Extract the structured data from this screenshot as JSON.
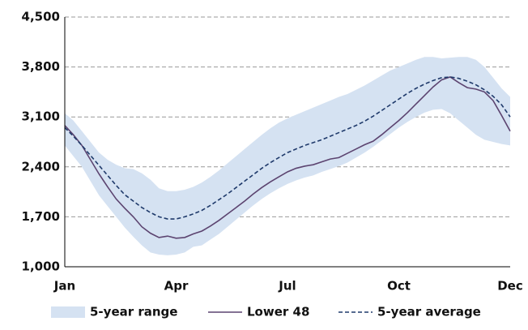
{
  "chart_data": {
    "type": "line",
    "categories": [
      "Jan",
      null,
      null,
      null,
      null,
      null,
      null,
      null,
      null,
      null,
      null,
      null,
      null,
      "Apr",
      null,
      null,
      null,
      null,
      null,
      null,
      null,
      null,
      null,
      null,
      null,
      null,
      "Jul",
      null,
      null,
      null,
      null,
      null,
      null,
      null,
      null,
      null,
      null,
      null,
      null,
      "Oct",
      null,
      null,
      null,
      null,
      null,
      null,
      null,
      null,
      null,
      null,
      null,
      null,
      "Dec"
    ],
    "ylim": [
      1000,
      4500
    ],
    "yticks": [
      {
        "value": 1000,
        "label": "1,000"
      },
      {
        "value": 1700,
        "label": "1,700"
      },
      {
        "value": 2400,
        "label": "2,400"
      },
      {
        "value": 3100,
        "label": "3,100"
      },
      {
        "value": 3800,
        "label": "3,800"
      },
      {
        "value": 4500,
        "label": "4,500"
      }
    ],
    "grid": true,
    "legend": "bottom",
    "series": [
      {
        "name": "5-year range",
        "kind": "range",
        "color": "#d5e2f2",
        "high": [
          3150,
          3050,
          2900,
          2750,
          2600,
          2500,
          2430,
          2380,
          2370,
          2310,
          2220,
          2100,
          2060,
          2060,
          2080,
          2120,
          2180,
          2260,
          2350,
          2450,
          2550,
          2650,
          2750,
          2850,
          2940,
          3020,
          3080,
          3130,
          3180,
          3230,
          3280,
          3330,
          3380,
          3420,
          3480,
          3540,
          3610,
          3680,
          3750,
          3800,
          3850,
          3900,
          3940,
          3940,
          3920,
          3930,
          3940,
          3940,
          3900,
          3800,
          3650,
          3500,
          3380
        ],
        "low": [
          2700,
          2550,
          2400,
          2200,
          2000,
          1850,
          1700,
          1550,
          1420,
          1300,
          1200,
          1170,
          1160,
          1170,
          1200,
          1280,
          1300,
          1380,
          1460,
          1560,
          1660,
          1760,
          1860,
          1950,
          2030,
          2100,
          2160,
          2210,
          2250,
          2280,
          2330,
          2370,
          2410,
          2460,
          2530,
          2600,
          2680,
          2770,
          2860,
          2950,
          3030,
          3100,
          3160,
          3200,
          3210,
          3150,
          3050,
          2950,
          2850,
          2780,
          2750,
          2720,
          2700
        ]
      },
      {
        "name": "Lower 48",
        "kind": "solid",
        "color": "#5c4470",
        "values": [
          2980,
          2850,
          2700,
          2500,
          2300,
          2120,
          1950,
          1820,
          1700,
          1560,
          1470,
          1410,
          1430,
          1400,
          1410,
          1460,
          1500,
          1570,
          1650,
          1740,
          1830,
          1920,
          2020,
          2110,
          2190,
          2260,
          2330,
          2380,
          2410,
          2430,
          2470,
          2510,
          2530,
          2590,
          2650,
          2710,
          2760,
          2850,
          2950,
          3050,
          3160,
          3280,
          3400,
          3520,
          3620,
          3660,
          3580,
          3510,
          3490,
          3450,
          3330,
          3120,
          2900
        ]
      },
      {
        "name": "5-year average",
        "kind": "dashed",
        "color": "#1f3a6b",
        "values": [
          2950,
          2830,
          2700,
          2560,
          2420,
          2280,
          2140,
          2010,
          1920,
          1830,
          1760,
          1700,
          1670,
          1670,
          1700,
          1740,
          1790,
          1860,
          1940,
          2020,
          2110,
          2200,
          2290,
          2380,
          2460,
          2530,
          2600,
          2650,
          2700,
          2740,
          2780,
          2830,
          2880,
          2930,
          2980,
          3040,
          3110,
          3190,
          3270,
          3350,
          3430,
          3500,
          3560,
          3610,
          3650,
          3660,
          3640,
          3600,
          3550,
          3480,
          3390,
          3270,
          3100
        ]
      }
    ]
  }
}
